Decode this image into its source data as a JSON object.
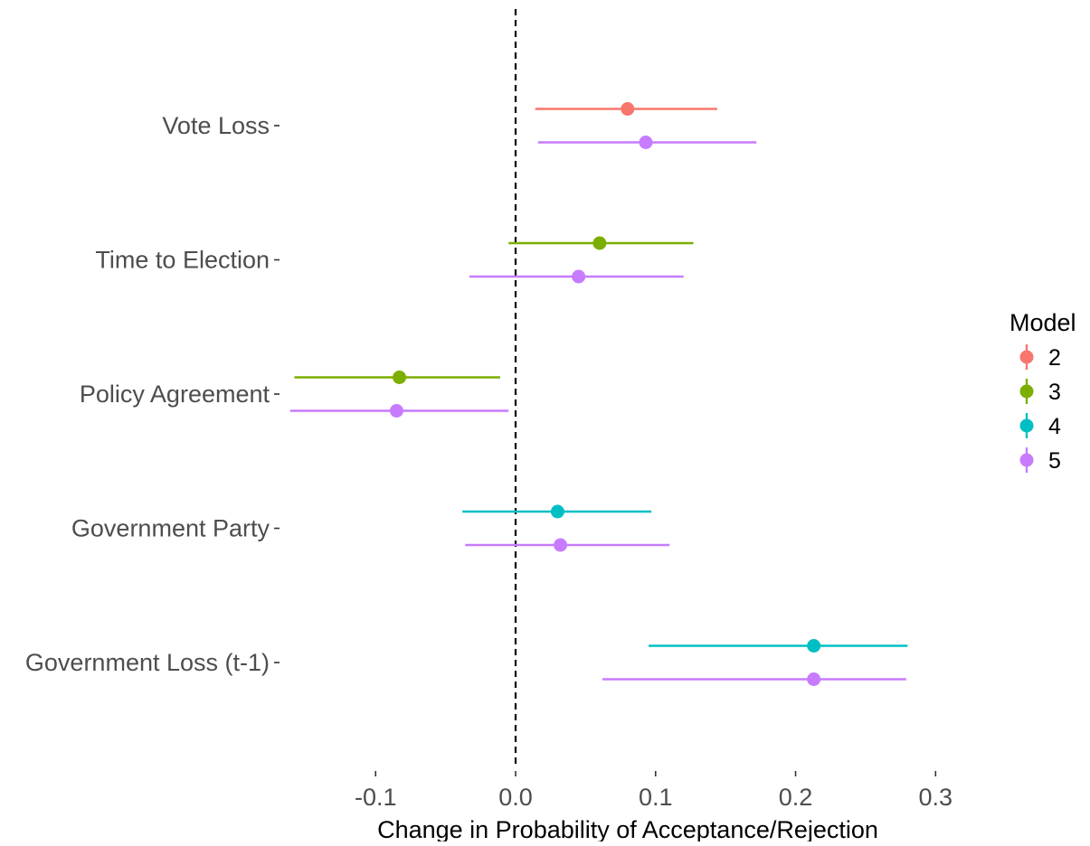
{
  "chart_data": {
    "type": "dot-whisker",
    "title": "",
    "xlabel": "Change in Probability of Acceptance/Rejection",
    "ylabel": "",
    "xlim": [
      -0.168,
      0.336
    ],
    "xticks": [
      -0.1,
      0.0,
      0.1,
      0.2,
      0.3
    ],
    "xtick_labels": [
      "-0.1",
      "0.0",
      "0.1",
      "0.2",
      "0.3"
    ],
    "reference_line": {
      "x": 0,
      "style": "dashed",
      "color": "#000000"
    },
    "grid": false,
    "legend": {
      "title": "Model",
      "position": "right",
      "entries": [
        {
          "label": "2",
          "color": "#F8766D"
        },
        {
          "label": "3",
          "color": "#7CAE00"
        },
        {
          "label": "4",
          "color": "#00BFC4"
        },
        {
          "label": "5",
          "color": "#C77CFF"
        }
      ]
    },
    "categories": [
      "Vote Loss",
      "Time to Election",
      "Policy Agreement",
      "Government Party",
      "Government Loss (t-1)"
    ],
    "series": [
      {
        "name": "2",
        "color": "#F8766D",
        "points": [
          {
            "category": "Vote Loss",
            "estimate": 0.08,
            "lower": 0.014,
            "upper": 0.144
          }
        ]
      },
      {
        "name": "3",
        "color": "#7CAE00",
        "points": [
          {
            "category": "Time to Election",
            "estimate": 0.06,
            "lower": -0.005,
            "upper": 0.127
          },
          {
            "category": "Policy Agreement",
            "estimate": -0.083,
            "lower": -0.158,
            "upper": -0.011
          }
        ]
      },
      {
        "name": "4",
        "color": "#00BFC4",
        "points": [
          {
            "category": "Government Party",
            "estimate": 0.03,
            "lower": -0.038,
            "upper": 0.097
          },
          {
            "category": "Government Loss (t-1)",
            "estimate": 0.213,
            "lower": 0.095,
            "upper": 0.28
          }
        ]
      },
      {
        "name": "5",
        "color": "#C77CFF",
        "points": [
          {
            "category": "Vote Loss",
            "estimate": 0.093,
            "lower": 0.016,
            "upper": 0.172
          },
          {
            "category": "Time to Election",
            "estimate": 0.045,
            "lower": -0.033,
            "upper": 0.12
          },
          {
            "category": "Policy Agreement",
            "estimate": -0.085,
            "lower": -0.161,
            "upper": -0.005
          },
          {
            "category": "Government Party",
            "estimate": 0.032,
            "lower": -0.036,
            "upper": 0.11
          },
          {
            "category": "Government Loss (t-1)",
            "estimate": 0.213,
            "lower": 0.062,
            "upper": 0.279
          }
        ]
      }
    ]
  }
}
